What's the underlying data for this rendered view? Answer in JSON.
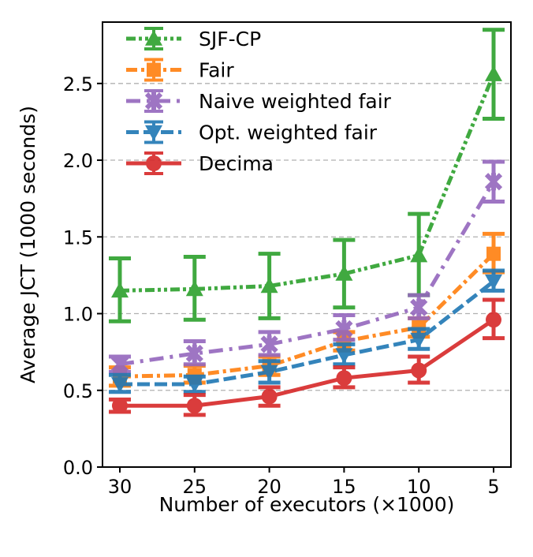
{
  "chart_data": {
    "type": "line",
    "title": "",
    "xlabel": "Number of executors (×1000)",
    "ylabel": "Average JCT (1000 seconds)",
    "categories": [
      "30",
      "25",
      "20",
      "15",
      "10",
      "5"
    ],
    "ylim": [
      0,
      2.9
    ],
    "yticks": [
      "0.0",
      "0.5",
      "1.0",
      "1.5",
      "2.0",
      "2.5"
    ],
    "grid": "horizontal dashed",
    "legend_placement": "top-left",
    "series": [
      {
        "name": "SJF-CP",
        "color": "#2ca02c",
        "marker": "triangle-up",
        "dash": "dash-dot-dot",
        "values": [
          1.15,
          1.16,
          1.18,
          1.26,
          1.38,
          2.56
        ],
        "err_low": [
          0.95,
          0.96,
          0.97,
          1.04,
          1.12,
          2.27
        ],
        "err_high": [
          1.36,
          1.37,
          1.39,
          1.48,
          1.65,
          2.85
        ]
      },
      {
        "name": "Fair",
        "color": "#ff7f0e",
        "marker": "square",
        "dash": "dash-dot",
        "values": [
          0.59,
          0.6,
          0.66,
          0.82,
          0.91,
          1.39
        ],
        "err_low": [
          0.53,
          0.55,
          0.6,
          0.76,
          0.85,
          1.27
        ],
        "err_high": [
          0.65,
          0.66,
          0.72,
          0.88,
          0.97,
          1.52
        ]
      },
      {
        "name": "Naive weighted fair",
        "color": "#9467bd",
        "marker": "x",
        "dash": "dash-dot-long",
        "values": [
          0.67,
          0.74,
          0.8,
          0.9,
          1.04,
          1.86
        ],
        "err_low": [
          0.62,
          0.67,
          0.73,
          0.83,
          0.97,
          1.73
        ],
        "err_high": [
          0.72,
          0.82,
          0.88,
          0.99,
          1.12,
          1.99
        ]
      },
      {
        "name": "Opt. weighted fair",
        "color": "#1f77b4",
        "marker": "triangle-down",
        "dash": "dashed",
        "values": [
          0.54,
          0.54,
          0.62,
          0.73,
          0.83,
          1.21
        ],
        "err_low": [
          0.49,
          0.49,
          0.55,
          0.67,
          0.77,
          1.15
        ],
        "err_high": [
          0.6,
          0.59,
          0.69,
          0.8,
          0.9,
          1.28
        ]
      },
      {
        "name": "Decima",
        "color": "#d62728",
        "marker": "circle",
        "dash": "solid",
        "values": [
          0.4,
          0.4,
          0.46,
          0.58,
          0.63,
          0.96
        ],
        "err_low": [
          0.36,
          0.34,
          0.4,
          0.52,
          0.55,
          0.84
        ],
        "err_high": [
          0.44,
          0.47,
          0.52,
          0.65,
          0.72,
          1.09
        ]
      }
    ]
  }
}
